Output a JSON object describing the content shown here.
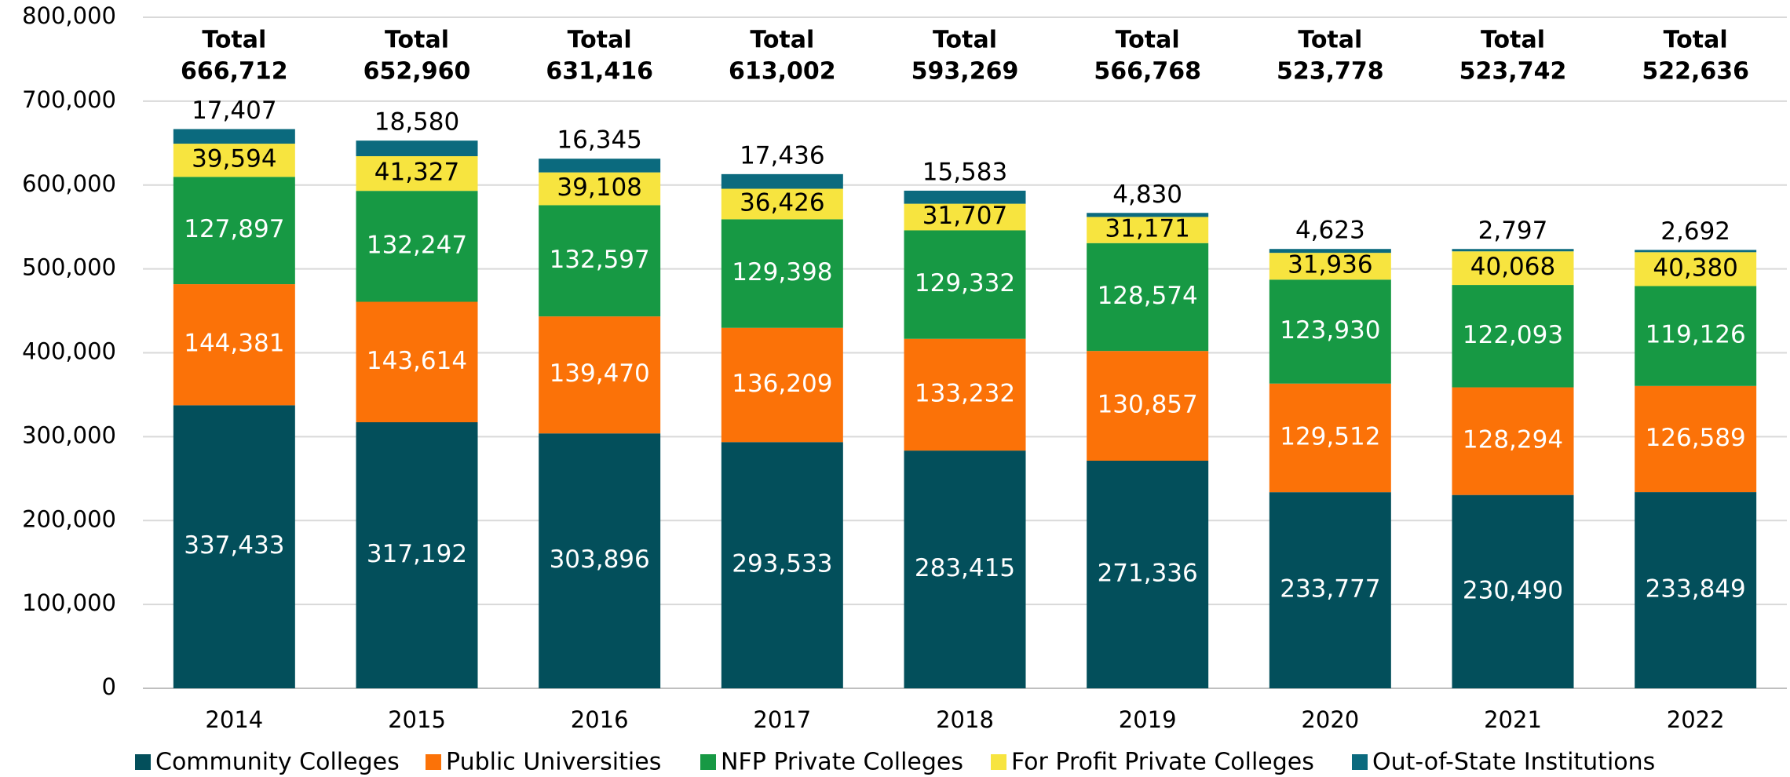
{
  "chart_data": {
    "type": "stacked_bar",
    "categories": [
      "2014",
      "2015",
      "2016",
      "2017",
      "2018",
      "2019",
      "2020",
      "2021",
      "2022"
    ],
    "series": [
      {
        "name": "Community Colleges",
        "color": "#034f5b",
        "label_color": "#ffffff",
        "values": [
          337433,
          317192,
          303896,
          293533,
          283415,
          271336,
          233777,
          230490,
          233849
        ],
        "value_labels": [
          "337,433",
          "317,192",
          "303,896",
          "293,533",
          "283,415",
          "271,336",
          "233,777",
          "230,490",
          "233,849"
        ]
      },
      {
        "name": "Public Universities",
        "color": "#fb7208",
        "label_color": "#ffffff",
        "values": [
          144381,
          143614,
          139470,
          136209,
          133232,
          130857,
          129512,
          128294,
          126589
        ],
        "value_labels": [
          "144,381",
          "143,614",
          "139,470",
          "136,209",
          "133,232",
          "130,857",
          "129,512",
          "128,294",
          "126,589"
        ]
      },
      {
        "name": "NFP Private Colleges",
        "color": "#179944",
        "label_color": "#ffffff",
        "values": [
          127897,
          132247,
          132597,
          129398,
          129332,
          128574,
          123930,
          122093,
          119126
        ],
        "value_labels": [
          "127,897",
          "132,247",
          "132,597",
          "129,398",
          "129,332",
          "128,574",
          "123,930",
          "122,093",
          "119,126"
        ]
      },
      {
        "name": "For Profit Private Colleges",
        "color": "#f7e43f",
        "label_color": "#000000",
        "values": [
          39594,
          41327,
          39108,
          36426,
          31707,
          31171,
          31936,
          40068,
          40380
        ],
        "value_labels": [
          "39,594",
          "41,327",
          "39,108",
          "36,426",
          "31,707",
          "31,171",
          "31,936",
          "40,068",
          "40,380"
        ]
      },
      {
        "name": "Out-of-State Institutions",
        "color": "#0b6a7e",
        "label_color": "#000000",
        "values": [
          17407,
          18580,
          16345,
          17436,
          15583,
          4830,
          4623,
          2797,
          2692
        ],
        "value_labels": [
          "17,407",
          "18,580",
          "16,345",
          "17,436",
          "15,583",
          "4,830",
          "4,623",
          "2,797",
          "2,692"
        ]
      }
    ],
    "total_word": "Total",
    "totals": [
      666712,
      652960,
      631416,
      613002,
      593269,
      566768,
      523778,
      523742,
      522636
    ],
    "total_labels": [
      "666,712",
      "652,960",
      "631,416",
      "613,002",
      "593,269",
      "566,768",
      "523,778",
      "523,742",
      "522,636"
    ],
    "ylim": [
      0,
      800000
    ],
    "yticks": [
      0,
      {
        "value": 100000,
        "label": "100,000"
      },
      {
        "value": 200000,
        "label": "200,000"
      },
      {
        "value": 300000,
        "label": "300,000"
      },
      {
        "value": 400000,
        "label": "400,000"
      },
      {
        "value": 500000,
        "label": "500,000"
      },
      {
        "value": 600000,
        "label": "600,000"
      },
      {
        "value": 700000,
        "label": "700,000"
      },
      {
        "value": 800000,
        "label": "800,000"
      }
    ],
    "grid": true,
    "legend": "bottom"
  }
}
